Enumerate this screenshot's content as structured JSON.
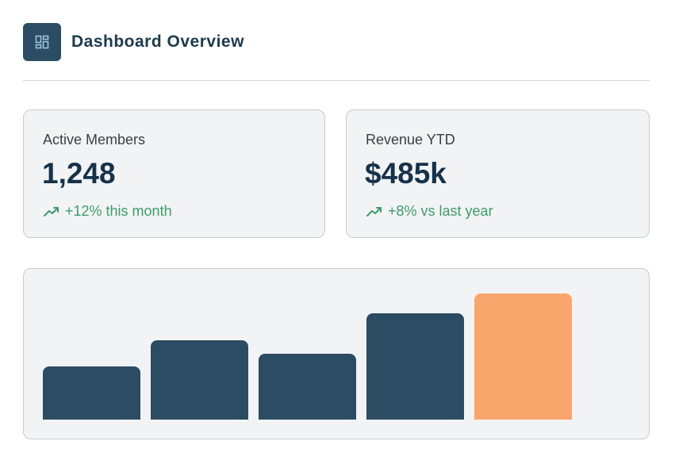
{
  "header": {
    "title": "Dashboard Overview",
    "icon": "dashboard-icon"
  },
  "cards": [
    {
      "label": "Active Members",
      "value": "1,248",
      "trend": "+12% this month",
      "trend_icon": "trending-up-icon"
    },
    {
      "label": "Revenue YTD",
      "value": "$485k",
      "trend": "+8% vs last year",
      "trend_icon": "trending-up-icon"
    }
  ],
  "colors": {
    "primary": "#2b4c62",
    "accent": "#f9a66c",
    "positive": "#3e9b6c"
  },
  "chart_data": {
    "type": "bar",
    "categories": [
      "",
      "",
      "",
      "",
      ""
    ],
    "values": [
      67,
      100,
      83,
      134,
      159
    ],
    "ylim": [
      0,
      159
    ],
    "highlight_index": 4,
    "grid": false,
    "title": "",
    "xlabel": "",
    "ylabel": ""
  }
}
